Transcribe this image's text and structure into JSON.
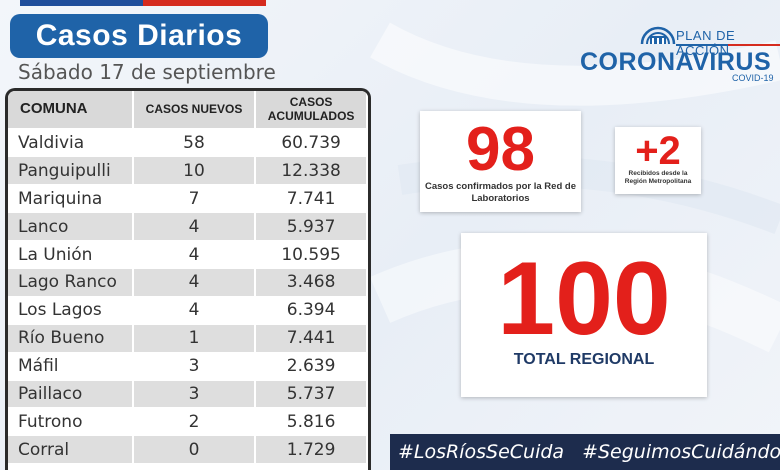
{
  "header": {
    "title": "Casos Diarios",
    "date": "Sábado 17  de septiembre"
  },
  "logo": {
    "plan": "PLAN DE ACCIÓN",
    "name": "CORONAVIRUS",
    "sub": "COVID-19"
  },
  "table": {
    "headers": {
      "comuna": "COMUNA",
      "nuevos": "CASOS NUEVOS",
      "acumulados": "CASOS ACUMULADOS"
    },
    "rows": [
      {
        "comuna": "Valdivia",
        "nuevos": "58",
        "acumulados": "60.739"
      },
      {
        "comuna": "Panguipulli",
        "nuevos": "10",
        "acumulados": "12.338"
      },
      {
        "comuna": "Mariquina",
        "nuevos": "7",
        "acumulados": "7.741"
      },
      {
        "comuna": "Lanco",
        "nuevos": "4",
        "acumulados": "5.937"
      },
      {
        "comuna": "La Unión",
        "nuevos": "4",
        "acumulados": "10.595"
      },
      {
        "comuna": "Lago Ranco",
        "nuevos": "4",
        "acumulados": "3.468"
      },
      {
        "comuna": "Los Lagos",
        "nuevos": "4",
        "acumulados": "6.394"
      },
      {
        "comuna": "Río Bueno",
        "nuevos": "1",
        "acumulados": "7.441"
      },
      {
        "comuna": "Máfil",
        "nuevos": "3",
        "acumulados": "2.639"
      },
      {
        "comuna": "Paillaco",
        "nuevos": "3",
        "acumulados": "5.737"
      },
      {
        "comuna": "Futrono",
        "nuevos": "2",
        "acumulados": "5.816"
      },
      {
        "comuna": "Corral",
        "nuevos": "0",
        "acumulados": "1.729"
      }
    ]
  },
  "stats": {
    "lab_count": "98",
    "lab_caption": "Casos confirmados por la Red de Laboratorios",
    "metro_count": "+2",
    "metro_caption": "Recibidos desde la Región Metropolitana",
    "total_count": "100",
    "total_caption": "TOTAL REGIONAL"
  },
  "footer": {
    "hashtag1": "#LosRíosSeCuida",
    "hashtag2": "#SeguimosCuidándonos"
  },
  "colors": {
    "brand_blue": "#1f63a8",
    "accent_red": "#e3201b",
    "footer_bg": "#1d2c4d"
  }
}
